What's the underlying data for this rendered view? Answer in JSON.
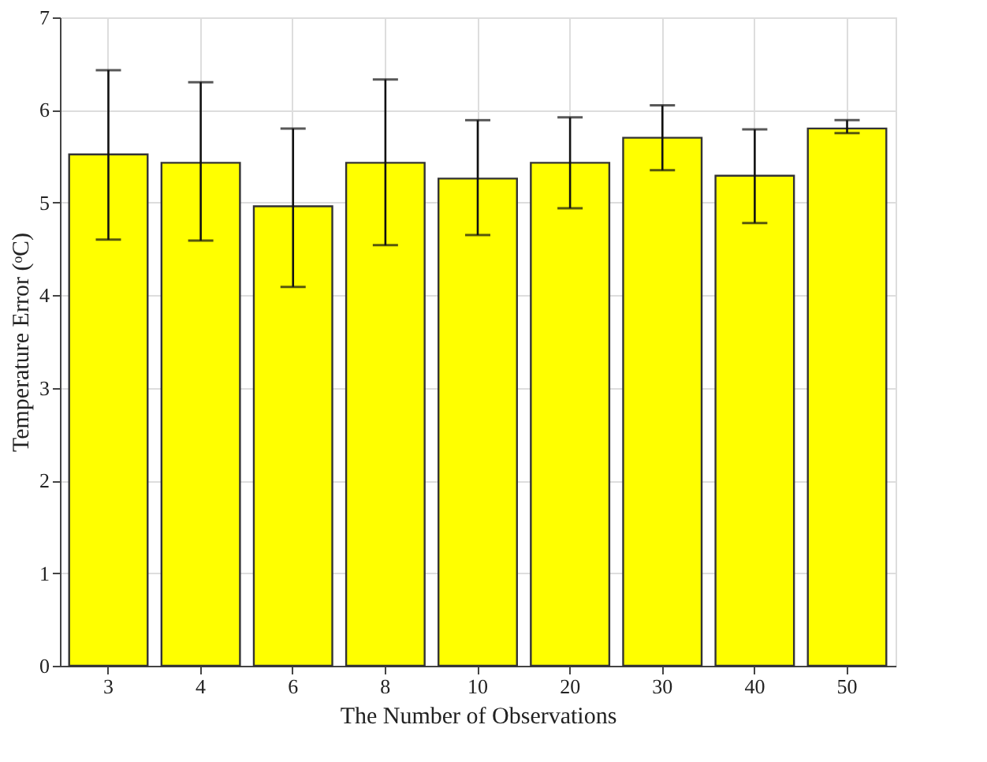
{
  "chart_data": {
    "type": "bar",
    "xlabel": "The Number of Observations",
    "ylabel": "Temperature Error (ᵒC)",
    "categories": [
      "3",
      "4",
      "6",
      "8",
      "10",
      "20",
      "30",
      "40",
      "50"
    ],
    "values": [
      5.52,
      5.43,
      4.96,
      5.43,
      5.26,
      5.43,
      5.7,
      5.29,
      5.8
    ],
    "errors": [
      [
        4.6,
        6.43
      ],
      [
        4.59,
        6.3
      ],
      [
        4.09,
        5.8
      ],
      [
        4.54,
        6.33
      ],
      [
        4.65,
        5.89
      ],
      [
        4.94,
        5.92
      ],
      [
        5.35,
        6.05
      ],
      [
        4.78,
        5.79
      ],
      [
        5.75,
        5.89
      ]
    ],
    "color": "#ffff00",
    "ylim": [
      0,
      7
    ],
    "yticks": [
      0,
      1,
      2,
      3,
      4,
      5,
      6,
      7
    ],
    "grid": true
  }
}
